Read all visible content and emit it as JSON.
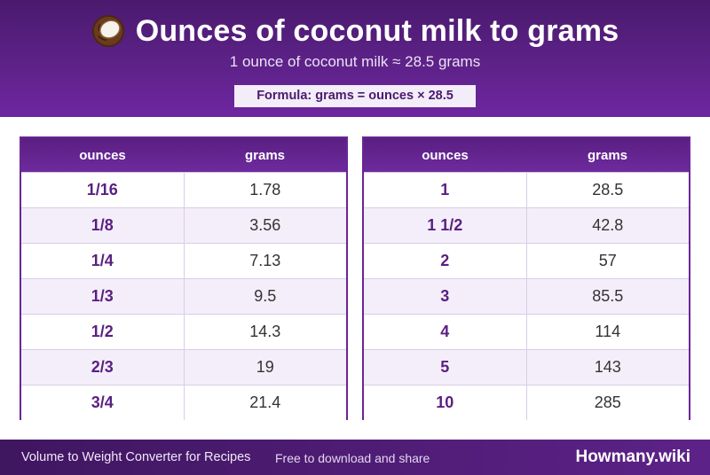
{
  "header": {
    "title": "Ounces of coconut milk to grams",
    "subtitle": "1 ounce of coconut milk ≈ 28.5 grams",
    "formula": "Formula: grams = ounces × 28.5",
    "icon": "coconut-icon"
  },
  "tables": [
    {
      "col_oz": "ounces",
      "col_g": "grams",
      "rows": [
        {
          "oz": "1/16",
          "g": "1.78"
        },
        {
          "oz": "1/8",
          "g": "3.56"
        },
        {
          "oz": "1/4",
          "g": "7.13"
        },
        {
          "oz": "1/3",
          "g": "9.5"
        },
        {
          "oz": "1/2",
          "g": "14.3"
        },
        {
          "oz": "2/3",
          "g": "19"
        },
        {
          "oz": "3/4",
          "g": "21.4"
        }
      ]
    },
    {
      "col_oz": "ounces",
      "col_g": "grams",
      "rows": [
        {
          "oz": "1",
          "g": "28.5"
        },
        {
          "oz": "1 1/2",
          "g": "42.8"
        },
        {
          "oz": "2",
          "g": "57"
        },
        {
          "oz": "3",
          "g": "85.5"
        },
        {
          "oz": "4",
          "g": "114"
        },
        {
          "oz": "5",
          "g": "143"
        },
        {
          "oz": "10",
          "g": "285"
        }
      ]
    }
  ],
  "footer": {
    "left_text": "Volume to Weight Converter for Recipes",
    "middle_text": "Free to download and share",
    "brand": "Howmany.wiki"
  },
  "colors": {
    "header_purple": "#5d2288",
    "accent_purple": "#6b2596",
    "row_alt": "#f4eefa"
  }
}
